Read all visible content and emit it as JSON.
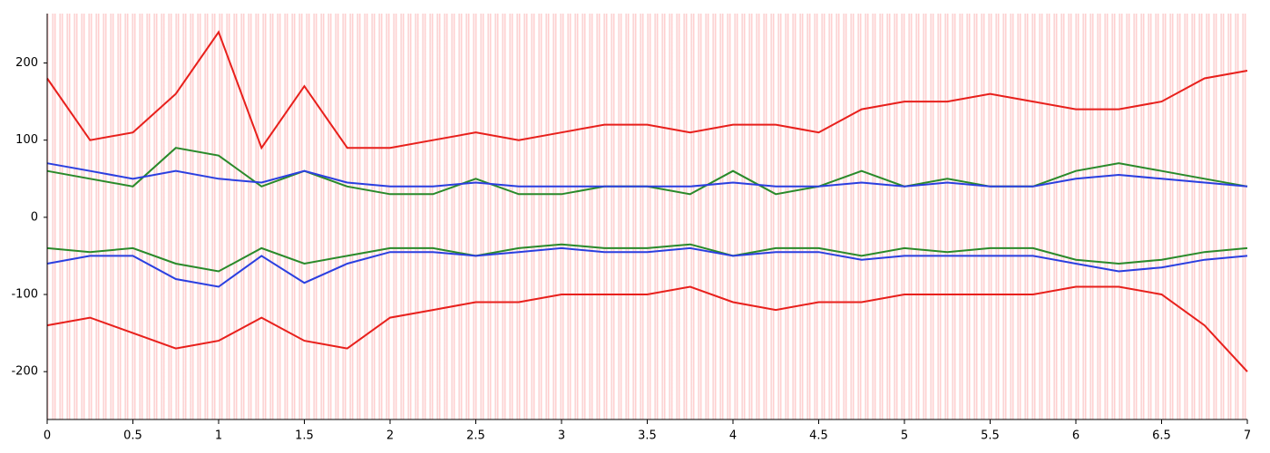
{
  "chart_data": {
    "type": "line",
    "x": [
      0,
      0.25,
      0.5,
      0.75,
      1,
      1.25,
      1.5,
      1.75,
      2,
      2.25,
      2.5,
      2.75,
      3,
      3.25,
      3.5,
      3.75,
      4,
      4.25,
      4.5,
      4.75,
      5,
      5.25,
      5.5,
      5.75,
      6,
      6.25,
      6.5,
      6.75,
      7
    ],
    "series": [
      {
        "color": "#e8201c",
        "values": [
          180,
          100,
          110,
          160,
          240,
          90,
          170,
          90,
          90,
          100,
          110,
          100,
          110,
          120,
          120,
          110,
          120,
          120,
          110,
          140,
          150,
          150,
          160,
          150,
          140,
          140,
          150,
          180,
          190
        ]
      },
      {
        "color": "#e8201c",
        "values": [
          -140,
          -130,
          -150,
          -170,
          -160,
          -130,
          -160,
          -170,
          -130,
          -120,
          -110,
          -110,
          -100,
          -100,
          -100,
          -90,
          -110,
          -120,
          -110,
          -110,
          -100,
          -100,
          -100,
          -100,
          -90,
          -90,
          -100,
          -140,
          -200
        ]
      },
      {
        "color": "#2a8a2a",
        "values": [
          60,
          50,
          40,
          90,
          80,
          40,
          60,
          40,
          30,
          30,
          50,
          30,
          30,
          40,
          40,
          30,
          60,
          30,
          40,
          60,
          40,
          50,
          40,
          40,
          60,
          70,
          60,
          50,
          40
        ]
      },
      {
        "color": "#2a8a2a",
        "values": [
          -40,
          -45,
          -40,
          -60,
          -70,
          -40,
          -60,
          -50,
          -40,
          -40,
          -50,
          -40,
          -35,
          -40,
          -40,
          -35,
          -50,
          -40,
          -40,
          -50,
          -40,
          -45,
          -40,
          -40,
          -55,
          -60,
          -55,
          -45,
          -40
        ]
      },
      {
        "color": "#2b3fe0",
        "values": [
          70,
          60,
          50,
          60,
          50,
          45,
          60,
          45,
          40,
          40,
          45,
          40,
          40,
          40,
          40,
          40,
          45,
          40,
          40,
          45,
          40,
          45,
          40,
          40,
          50,
          55,
          50,
          45,
          40
        ]
      },
      {
        "color": "#2b3fe0",
        "values": [
          -60,
          -50,
          -50,
          -80,
          -90,
          -50,
          -85,
          -60,
          -45,
          -45,
          -50,
          -45,
          -40,
          -45,
          -45,
          -40,
          -50,
          -45,
          -45,
          -55,
          -50,
          -50,
          -50,
          -50,
          -60,
          -70,
          -65,
          -55,
          -50
        ]
      }
    ],
    "xlim": [
      0,
      7
    ],
    "xticks": [
      0,
      0.5,
      1,
      1.5,
      2,
      2.5,
      3,
      3.5,
      4,
      4.5,
      5,
      5.5,
      6,
      6.5,
      7
    ],
    "ylim": [
      -262,
      264
    ],
    "yticks": [
      -200,
      -100,
      0,
      100,
      200
    ]
  }
}
